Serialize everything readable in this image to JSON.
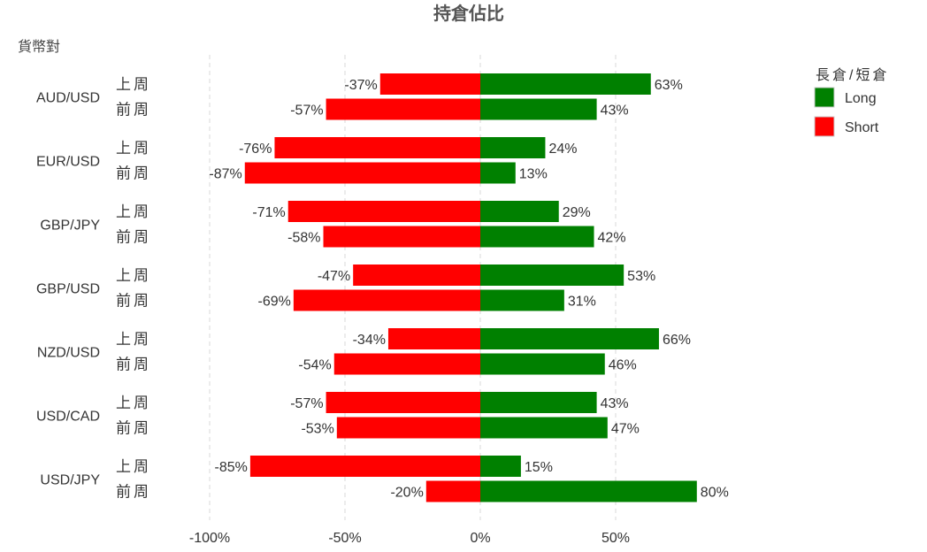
{
  "chart_data": {
    "type": "bar",
    "orientation": "horizontal",
    "title": "持倉佔比",
    "ylabel": "貨幣對",
    "xlim": [
      -100,
      80
    ],
    "x_ticks": [
      "-100%",
      "-50%",
      "0%",
      "50%"
    ],
    "x_tick_values": [
      -100,
      -50,
      0,
      50
    ],
    "grid": "vertical dashed",
    "legend": {
      "title": "長倉/短倉",
      "placement": "top-right",
      "items": [
        {
          "name": "Long",
          "color": "#008000"
        },
        {
          "name": "Short",
          "color": "#ff0000"
        }
      ]
    },
    "groups": [
      {
        "pair": "AUD/USD",
        "rows": [
          {
            "week": "上周",
            "short": -37,
            "long": 63,
            "short_label": "-37%",
            "long_label": "63%"
          },
          {
            "week": "前周",
            "short": -57,
            "long": 43,
            "short_label": "-57%",
            "long_label": "43%"
          }
        ]
      },
      {
        "pair": "EUR/USD",
        "rows": [
          {
            "week": "上周",
            "short": -76,
            "long": 24,
            "short_label": "-76%",
            "long_label": "24%"
          },
          {
            "week": "前周",
            "short": -87,
            "long": 13,
            "short_label": "-87%",
            "long_label": "13%"
          }
        ]
      },
      {
        "pair": "GBP/JPY",
        "rows": [
          {
            "week": "上周",
            "short": -71,
            "long": 29,
            "short_label": "-71%",
            "long_label": "29%"
          },
          {
            "week": "前周",
            "short": -58,
            "long": 42,
            "short_label": "-58%",
            "long_label": "42%"
          }
        ]
      },
      {
        "pair": "GBP/USD",
        "rows": [
          {
            "week": "上周",
            "short": -47,
            "long": 53,
            "short_label": "-47%",
            "long_label": "53%"
          },
          {
            "week": "前周",
            "short": -69,
            "long": 31,
            "short_label": "-69%",
            "long_label": "31%"
          }
        ]
      },
      {
        "pair": "NZD/USD",
        "rows": [
          {
            "week": "上周",
            "short": -34,
            "long": 66,
            "short_label": "-34%",
            "long_label": "66%"
          },
          {
            "week": "前周",
            "short": -54,
            "long": 46,
            "short_label": "-54%",
            "long_label": "46%"
          }
        ]
      },
      {
        "pair": "USD/CAD",
        "rows": [
          {
            "week": "上周",
            "short": -57,
            "long": 43,
            "short_label": "-57%",
            "long_label": "43%"
          },
          {
            "week": "前周",
            "short": -53,
            "long": 47,
            "short_label": "-53%",
            "long_label": "47%"
          }
        ]
      },
      {
        "pair": "USD/JPY",
        "rows": [
          {
            "week": "上周",
            "short": -85,
            "long": 15,
            "short_label": "-85%",
            "long_label": "15%"
          },
          {
            "week": "前周",
            "short": -20,
            "long": 80,
            "short_label": "-20%",
            "long_label": "80%"
          }
        ]
      }
    ]
  }
}
